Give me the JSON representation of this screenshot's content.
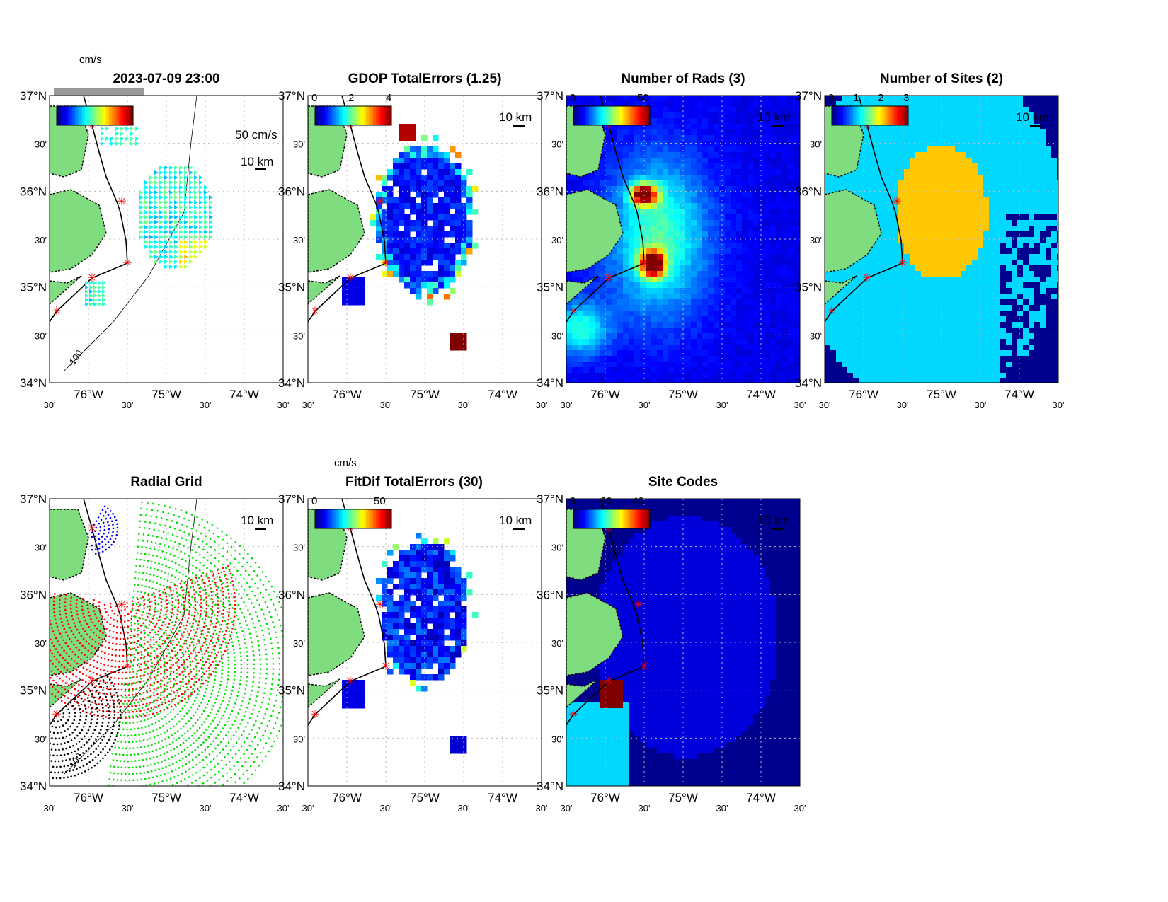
{
  "figure": {
    "lat_labels": [
      "37°N",
      "30'",
      "36°N",
      "30'",
      "35°N",
      "30'",
      "34°N"
    ],
    "lon_labels": [
      "30'",
      "76°W",
      "30'",
      "75°W",
      "30'",
      "74°W",
      "30'"
    ],
    "scale_label": "10 km",
    "vector_scale_label": "50 cm/s",
    "units_label": "cm/s",
    "contour_label": "-100"
  },
  "chart_data": [
    {
      "type": "quiver",
      "panel": "total-currents",
      "title": "2023-07-09 23:00",
      "colorbar_units": "cm/s",
      "colorbar_ticks": [],
      "colormap": "jet",
      "xlim": [
        -76.5,
        -73.5
      ],
      "ylim": [
        34,
        37
      ]
    },
    {
      "type": "heatmap",
      "panel": "gdop",
      "title": "GDOP TotalErrors (1.25)",
      "colorbar_ticks": [
        "0",
        "2",
        "4"
      ],
      "colormap": "jet",
      "xlim": [
        -76.5,
        -73.5
      ],
      "ylim": [
        34,
        37
      ],
      "contour_label": "1.25"
    },
    {
      "type": "heatmap",
      "panel": "num-rads",
      "title": "Number of Rads (3)",
      "colorbar_ticks": [
        "0",
        "50"
      ],
      "colormap": "jet",
      "xlim": [
        -76.5,
        -73.5
      ],
      "ylim": [
        34,
        37
      ],
      "contour_label": "3"
    },
    {
      "type": "heatmap",
      "panel": "num-sites",
      "title": "Number of Sites (2)",
      "colorbar_ticks": [
        "0",
        "1",
        "2",
        "3"
      ],
      "colormap": "jet",
      "xlim": [
        -76.5,
        -73.5
      ],
      "ylim": [
        34,
        37
      ],
      "contour_label": "2"
    },
    {
      "type": "scatter",
      "panel": "radial-grid",
      "title": "Radial Grid",
      "xlim": [
        -76.5,
        -73.5
      ],
      "ylim": [
        34,
        37
      ],
      "series_colors": [
        "#ff0000",
        "#00e000",
        "#000000",
        "#0000ff"
      ]
    },
    {
      "type": "heatmap",
      "panel": "fitdif",
      "title": "FitDif TotalErrors (30)",
      "colorbar_units": "cm/s",
      "colorbar_ticks": [
        "0",
        "50"
      ],
      "colormap": "jet",
      "xlim": [
        -76.5,
        -73.5
      ],
      "ylim": [
        34,
        37
      ]
    },
    {
      "type": "heatmap",
      "panel": "site-codes",
      "title": "Site Codes",
      "colorbar_ticks": [
        "0",
        "20",
        "40"
      ],
      "colormap": "jet",
      "xlim": [
        -76.5,
        -73.5
      ],
      "ylim": [
        34,
        37
      ]
    }
  ],
  "colors": {
    "land": "#7fdc7f",
    "site_marker": "#ff0000",
    "grid": "#bbbbbb"
  }
}
